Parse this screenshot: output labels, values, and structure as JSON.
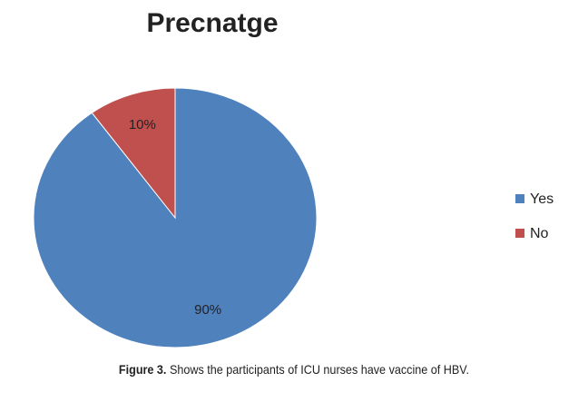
{
  "chart_data": {
    "type": "pie",
    "title": "Precnatge",
    "categories": [
      "Yes",
      "No"
    ],
    "values": [
      90,
      10
    ],
    "value_labels": [
      "90%",
      "10%"
    ],
    "colors": [
      "#4f81bd",
      "#c0504d"
    ],
    "legend": "right"
  },
  "caption": {
    "label": "Figure 3.",
    "text": "Shows the participants of ICU nurses have vaccine of HBV."
  }
}
